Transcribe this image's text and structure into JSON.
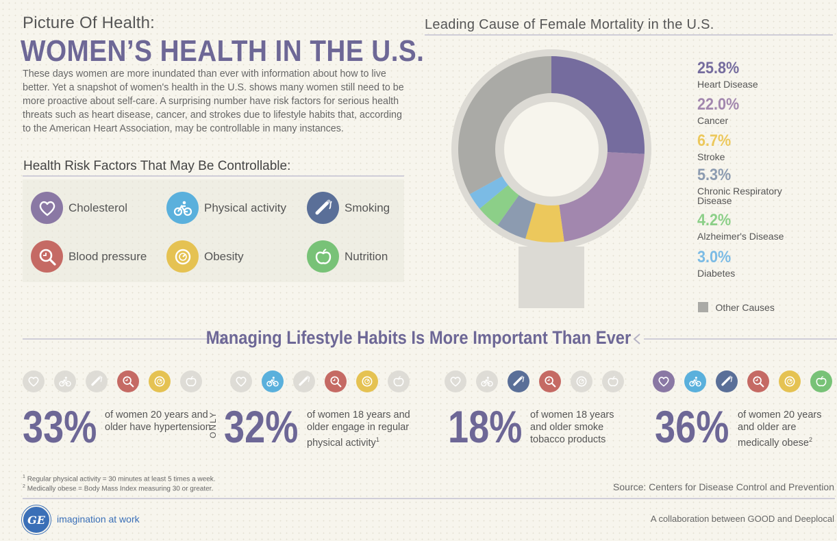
{
  "header": {
    "kicker": "Picture Of Health:",
    "title": "WOMEN’S HEALTH IN THE U.S.",
    "intro": "These days women are more inundated than ever with information about how to live better. Yet a snapshot of women's health in the U.S. shows many women still need to be more proactive about self-care. A surprising number have risk factors for serious health threats such as heart disease, cancer, and strokes due to lifestyle habits that, according to the American Heart Association, may be controllable in many instances."
  },
  "risk_factors": {
    "title": "Health Risk Factors That May Be Controllable:",
    "items": [
      {
        "label": "Cholesterol",
        "icon": "heart-icon",
        "color": "#8a78a4"
      },
      {
        "label": "Physical activity",
        "icon": "bicycle-icon",
        "color": "#5ab0dc"
      },
      {
        "label": "Smoking",
        "icon": "cigarette-icon",
        "color": "#5a6f98"
      },
      {
        "label": "Blood pressure",
        "icon": "magnifier-icon",
        "color": "#c56a64"
      },
      {
        "label": "Obesity",
        "icon": "scale-icon",
        "color": "#e5c252"
      },
      {
        "label": "Nutrition",
        "icon": "apple-icon",
        "color": "#78c277"
      }
    ]
  },
  "chart_data": {
    "type": "pie",
    "title": "Leading Cause of Female Mortality in the U.S.",
    "slices": [
      {
        "label": "Heart Disease",
        "value": 25.8,
        "display": "25.8%",
        "color": "#756c9e"
      },
      {
        "label": "Cancer",
        "value": 22.0,
        "display": "22.0%",
        "color": "#a287ae"
      },
      {
        "label": "Stroke",
        "value": 6.7,
        "display": "6.7%",
        "color": "#ecc85c"
      },
      {
        "label": "Chronic Respiratory Disease",
        "value": 5.3,
        "display": "5.3%",
        "color": "#8c9bb0"
      },
      {
        "label": "Alzheimer's Disease",
        "value": 4.2,
        "display": "4.2%",
        "color": "#8ccf88"
      },
      {
        "label": "Diabetes",
        "value": 3.0,
        "display": "3.0%",
        "color": "#7bbbe5"
      },
      {
        "label": "Other Causes",
        "value": 33.0,
        "display": "",
        "color": "#aaaaa6"
      }
    ],
    "legend_placement": "right"
  },
  "section": {
    "title": "Managing Lifestyle Habits Is More Important Than Ever"
  },
  "stats": [
    {
      "value": "33%",
      "prefix": "",
      "text": "of women 20 years and older have hypertension",
      "sup": "",
      "active": [
        false,
        false,
        false,
        true,
        true,
        false
      ]
    },
    {
      "value": "32%",
      "prefix": "ONLY",
      "text": "of women 18 years and older engage in regular physical activity",
      "sup": "1",
      "active": [
        false,
        true,
        false,
        true,
        true,
        false
      ]
    },
    {
      "value": "18%",
      "prefix": "",
      "text": "of women 18 years and older smoke tobacco products",
      "sup": "",
      "active": [
        false,
        false,
        true,
        true,
        false,
        false
      ]
    },
    {
      "value": "36%",
      "prefix": "",
      "text": "of women 20 years and older are medically obese",
      "sup": "2",
      "active": [
        true,
        true,
        true,
        true,
        true,
        true
      ]
    }
  ],
  "footnotes": {
    "n1": "Regular physical activity = 30 minutes at least 5 times a week.",
    "n2": "Medically obese = Body Mass Index measuring 30 or greater.",
    "n1_mark": "1",
    "n2_mark": "2"
  },
  "footer": {
    "source": "Source: Centers for Disease Control and Prevention",
    "logo_text": "GE",
    "tagline": "imagination at work",
    "collab": "A collaboration between GOOD and Deeplocal"
  },
  "colors": {
    "accent": "#6d6796",
    "inactive_icon": "#dcdad4"
  }
}
